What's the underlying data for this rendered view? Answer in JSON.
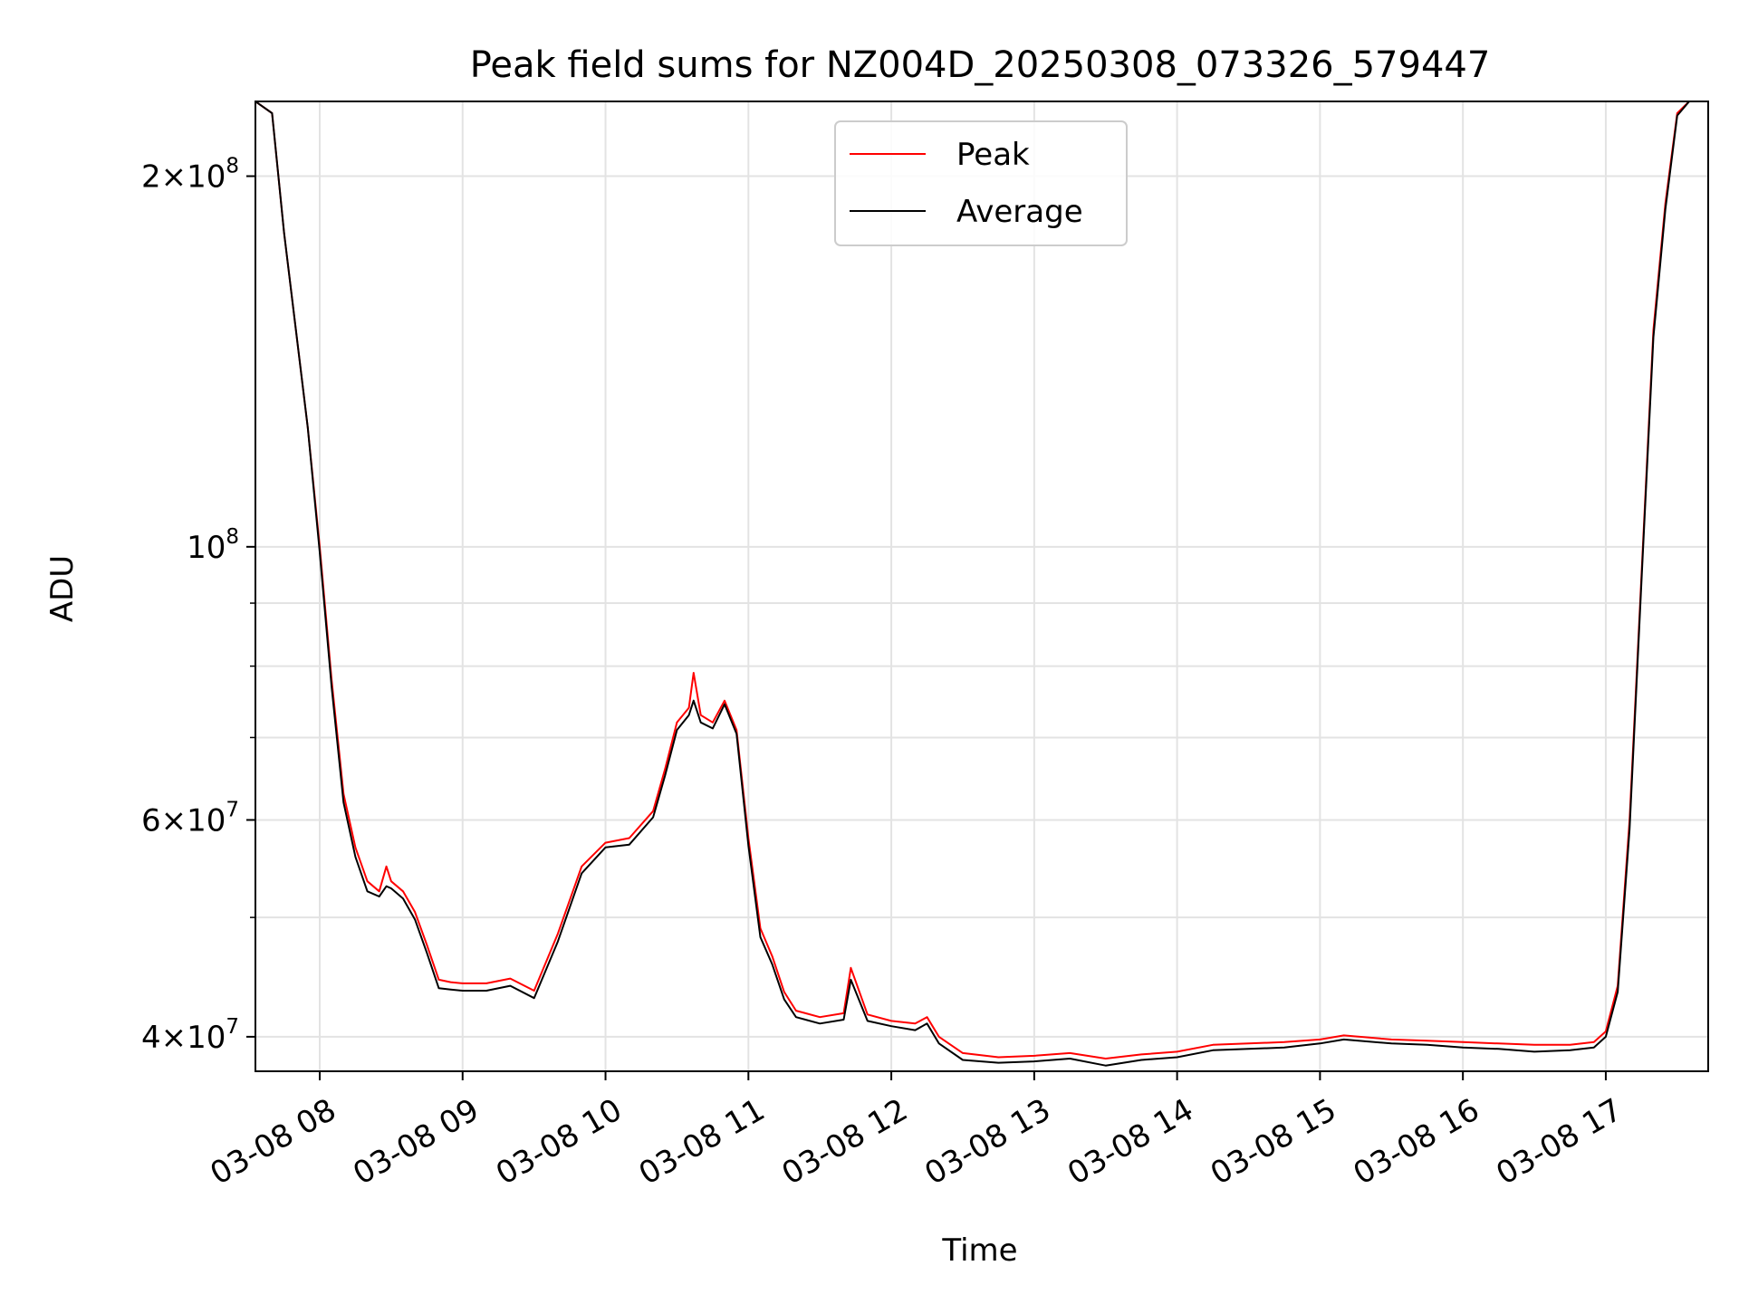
{
  "chart_data": {
    "type": "line",
    "title": "Peak field sums for NZ004D_20250308_073326_579447",
    "xlabel": "Time",
    "ylabel": "ADU",
    "yscale": "log",
    "grid": true,
    "legend": {
      "position": "upper center",
      "entries": [
        "Peak",
        "Average"
      ]
    },
    "xlim": [
      "2025-03-08 07:33",
      "2025-03-08 17:43"
    ],
    "ylim": [
      37500000,
      230000000
    ],
    "x_ticks": [
      {
        "value": "2025-03-08 08:00",
        "label": "03-08 08"
      },
      {
        "value": "2025-03-08 09:00",
        "label": "03-08 09"
      },
      {
        "value": "2025-03-08 10:00",
        "label": "03-08 10"
      },
      {
        "value": "2025-03-08 11:00",
        "label": "03-08 11"
      },
      {
        "value": "2025-03-08 12:00",
        "label": "03-08 12"
      },
      {
        "value": "2025-03-08 13:00",
        "label": "03-08 13"
      },
      {
        "value": "2025-03-08 14:00",
        "label": "03-08 14"
      },
      {
        "value": "2025-03-08 15:00",
        "label": "03-08 15"
      },
      {
        "value": "2025-03-08 16:00",
        "label": "03-08 16"
      },
      {
        "value": "2025-03-08 17:00",
        "label": "03-08 17"
      }
    ],
    "y_major_ticks": [
      {
        "value": 40000000,
        "mantissa": "4",
        "exp": "7"
      },
      {
        "value": 60000000,
        "mantissa": "6",
        "exp": "7"
      },
      {
        "value": 100000000,
        "mantissa": "",
        "exp": "8"
      },
      {
        "value": 200000000,
        "mantissa": "2",
        "exp": "8"
      }
    ],
    "y_minor_ticks": [
      50000000,
      70000000,
      80000000,
      90000000
    ],
    "series": [
      {
        "name": "Peak",
        "color": "#ff0000",
        "x": [
          "2025-03-08 07:33",
          "2025-03-08 07:40",
          "2025-03-08 07:45",
          "2025-03-08 07:50",
          "2025-03-08 07:55",
          "2025-03-08 08:00",
          "2025-03-08 08:05",
          "2025-03-08 08:10",
          "2025-03-08 08:15",
          "2025-03-08 08:20",
          "2025-03-08 08:25",
          "2025-03-08 08:28",
          "2025-03-08 08:30",
          "2025-03-08 08:35",
          "2025-03-08 08:40",
          "2025-03-08 08:45",
          "2025-03-08 08:50",
          "2025-03-08 08:55",
          "2025-03-08 09:00",
          "2025-03-08 09:10",
          "2025-03-08 09:20",
          "2025-03-08 09:30",
          "2025-03-08 09:40",
          "2025-03-08 09:50",
          "2025-03-08 10:00",
          "2025-03-08 10:10",
          "2025-03-08 10:20",
          "2025-03-08 10:25",
          "2025-03-08 10:30",
          "2025-03-08 10:35",
          "2025-03-08 10:37",
          "2025-03-08 10:40",
          "2025-03-08 10:45",
          "2025-03-08 10:50",
          "2025-03-08 10:55",
          "2025-03-08 11:00",
          "2025-03-08 11:05",
          "2025-03-08 11:10",
          "2025-03-08 11:15",
          "2025-03-08 11:20",
          "2025-03-08 11:30",
          "2025-03-08 11:40",
          "2025-03-08 11:43",
          "2025-03-08 11:50",
          "2025-03-08 12:00",
          "2025-03-08 12:10",
          "2025-03-08 12:15",
          "2025-03-08 12:20",
          "2025-03-08 12:30",
          "2025-03-08 12:45",
          "2025-03-08 13:00",
          "2025-03-08 13:15",
          "2025-03-08 13:30",
          "2025-03-08 13:45",
          "2025-03-08 14:00",
          "2025-03-08 14:15",
          "2025-03-08 14:30",
          "2025-03-08 14:45",
          "2025-03-08 15:00",
          "2025-03-08 15:10",
          "2025-03-08 15:30",
          "2025-03-08 15:45",
          "2025-03-08 16:00",
          "2025-03-08 16:15",
          "2025-03-08 16:30",
          "2025-03-08 16:45",
          "2025-03-08 16:55",
          "2025-03-08 17:00",
          "2025-03-08 17:05",
          "2025-03-08 17:10",
          "2025-03-08 17:15",
          "2025-03-08 17:20",
          "2025-03-08 17:25",
          "2025-03-08 17:30",
          "2025-03-08 17:35",
          "2025-03-08 17:43"
        ],
        "y": [
          230000000,
          225000000,
          180000000,
          150000000,
          125000000,
          100000000,
          78000000,
          63000000,
          57000000,
          53500000,
          52500000,
          55000000,
          53500000,
          52500000,
          50500000,
          47500000,
          44500000,
          44300000,
          44200000,
          44200000,
          44600000,
          43600000,
          48500000,
          55000000,
          57500000,
          58000000,
          61000000,
          66000000,
          72000000,
          74000000,
          79000000,
          73000000,
          72000000,
          75000000,
          71000000,
          58000000,
          49000000,
          46500000,
          43500000,
          42000000,
          41500000,
          41800000,
          45500000,
          41700000,
          41200000,
          41000000,
          41500000,
          40000000,
          38800000,
          38500000,
          38600000,
          38800000,
          38400000,
          38700000,
          38900000,
          39400000,
          39500000,
          39600000,
          39800000,
          40100000,
          39800000,
          39700000,
          39600000,
          39500000,
          39400000,
          39400000,
          39600000,
          40400000,
          44000000,
          60000000,
          95000000,
          150000000,
          190000000,
          225000000,
          230000000,
          230000000
        ]
      },
      {
        "name": "Average",
        "color": "#000000",
        "x": [
          "2025-03-08 07:33",
          "2025-03-08 07:40",
          "2025-03-08 07:45",
          "2025-03-08 07:50",
          "2025-03-08 07:55",
          "2025-03-08 08:00",
          "2025-03-08 08:05",
          "2025-03-08 08:10",
          "2025-03-08 08:15",
          "2025-03-08 08:20",
          "2025-03-08 08:25",
          "2025-03-08 08:28",
          "2025-03-08 08:30",
          "2025-03-08 08:35",
          "2025-03-08 08:40",
          "2025-03-08 08:45",
          "2025-03-08 08:50",
          "2025-03-08 08:55",
          "2025-03-08 09:00",
          "2025-03-08 09:10",
          "2025-03-08 09:20",
          "2025-03-08 09:30",
          "2025-03-08 09:40",
          "2025-03-08 09:50",
          "2025-03-08 10:00",
          "2025-03-08 10:10",
          "2025-03-08 10:20",
          "2025-03-08 10:25",
          "2025-03-08 10:30",
          "2025-03-08 10:35",
          "2025-03-08 10:37",
          "2025-03-08 10:40",
          "2025-03-08 10:45",
          "2025-03-08 10:50",
          "2025-03-08 10:55",
          "2025-03-08 11:00",
          "2025-03-08 11:05",
          "2025-03-08 11:10",
          "2025-03-08 11:15",
          "2025-03-08 11:20",
          "2025-03-08 11:30",
          "2025-03-08 11:40",
          "2025-03-08 11:43",
          "2025-03-08 11:50",
          "2025-03-08 12:00",
          "2025-03-08 12:10",
          "2025-03-08 12:15",
          "2025-03-08 12:20",
          "2025-03-08 12:30",
          "2025-03-08 12:45",
          "2025-03-08 13:00",
          "2025-03-08 13:15",
          "2025-03-08 13:30",
          "2025-03-08 13:45",
          "2025-03-08 14:00",
          "2025-03-08 14:15",
          "2025-03-08 14:30",
          "2025-03-08 14:45",
          "2025-03-08 15:00",
          "2025-03-08 15:10",
          "2025-03-08 15:30",
          "2025-03-08 15:45",
          "2025-03-08 16:00",
          "2025-03-08 16:15",
          "2025-03-08 16:30",
          "2025-03-08 16:45",
          "2025-03-08 16:55",
          "2025-03-08 17:00",
          "2025-03-08 17:05",
          "2025-03-08 17:10",
          "2025-03-08 17:15",
          "2025-03-08 17:20",
          "2025-03-08 17:25",
          "2025-03-08 17:30",
          "2025-03-08 17:35",
          "2025-03-08 17:43"
        ],
        "y": [
          230000000,
          225000000,
          180000000,
          150000000,
          125000000,
          99000000,
          77000000,
          62000000,
          56000000,
          52500000,
          52000000,
          53000000,
          52800000,
          51800000,
          49800000,
          46800000,
          43800000,
          43700000,
          43600000,
          43600000,
          44000000,
          43000000,
          47800000,
          54300000,
          57000000,
          57300000,
          60300000,
          65200000,
          71000000,
          73000000,
          75000000,
          72000000,
          71200000,
          74500000,
          70500000,
          57200000,
          48200000,
          45800000,
          42900000,
          41500000,
          41000000,
          41300000,
          44500000,
          41200000,
          40800000,
          40500000,
          41000000,
          39500000,
          38300000,
          38100000,
          38200000,
          38400000,
          37900000,
          38300000,
          38500000,
          39000000,
          39100000,
          39200000,
          39500000,
          39800000,
          39500000,
          39400000,
          39200000,
          39100000,
          38900000,
          39000000,
          39200000,
          40000000,
          43500000,
          59000000,
          94000000,
          148000000,
          188000000,
          224000000,
          230000000,
          230000000
        ]
      }
    ]
  }
}
